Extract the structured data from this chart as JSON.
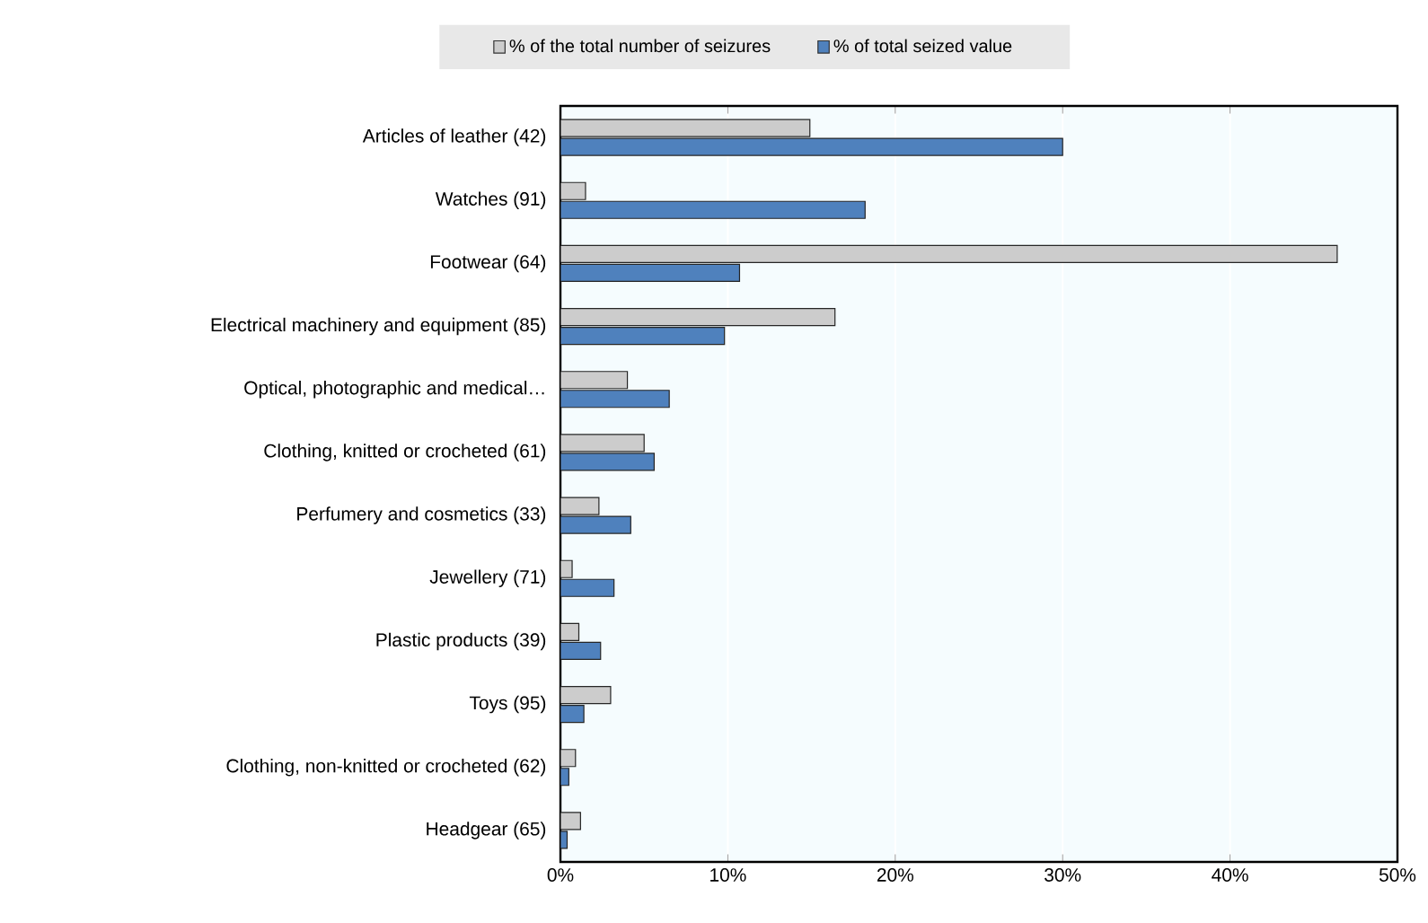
{
  "chart_data": {
    "type": "bar",
    "orientation": "horizontal",
    "categories": [
      "Articles of leather (42)",
      "Watches (91)",
      "Footwear (64)",
      "Electrical machinery and equipment (85)",
      "Optical, photographic and medical…",
      "Clothing, knitted or crocheted (61)",
      "Perfumery and cosmetics (33)",
      "Jewellery (71)",
      "Plastic products (39)",
      "Toys (95)",
      "Clothing, non-knitted or crocheted (62)",
      "Headgear (65)"
    ],
    "series": [
      {
        "name": "% of the total number of seizures",
        "color": "#cccccc",
        "values": [
          14.9,
          1.5,
          46.4,
          16.4,
          4.0,
          5.0,
          2.3,
          0.7,
          1.1,
          3.0,
          0.9,
          1.2
        ]
      },
      {
        "name": "% of total seized value",
        "color": "#4f81bd",
        "values": [
          30.0,
          18.2,
          10.7,
          9.8,
          6.5,
          5.6,
          4.2,
          3.2,
          2.4,
          1.4,
          0.5,
          0.4
        ]
      }
    ],
    "xlim": [
      0,
      50
    ],
    "xticks": [
      {
        "value": 0,
        "label": "0%"
      },
      {
        "value": 10,
        "label": "10%"
      },
      {
        "value": 20,
        "label": "20%"
      },
      {
        "value": 30,
        "label": "30%"
      },
      {
        "value": 40,
        "label": "40%"
      },
      {
        "value": 50,
        "label": "50%"
      }
    ],
    "grid": "x",
    "legend": "top"
  }
}
